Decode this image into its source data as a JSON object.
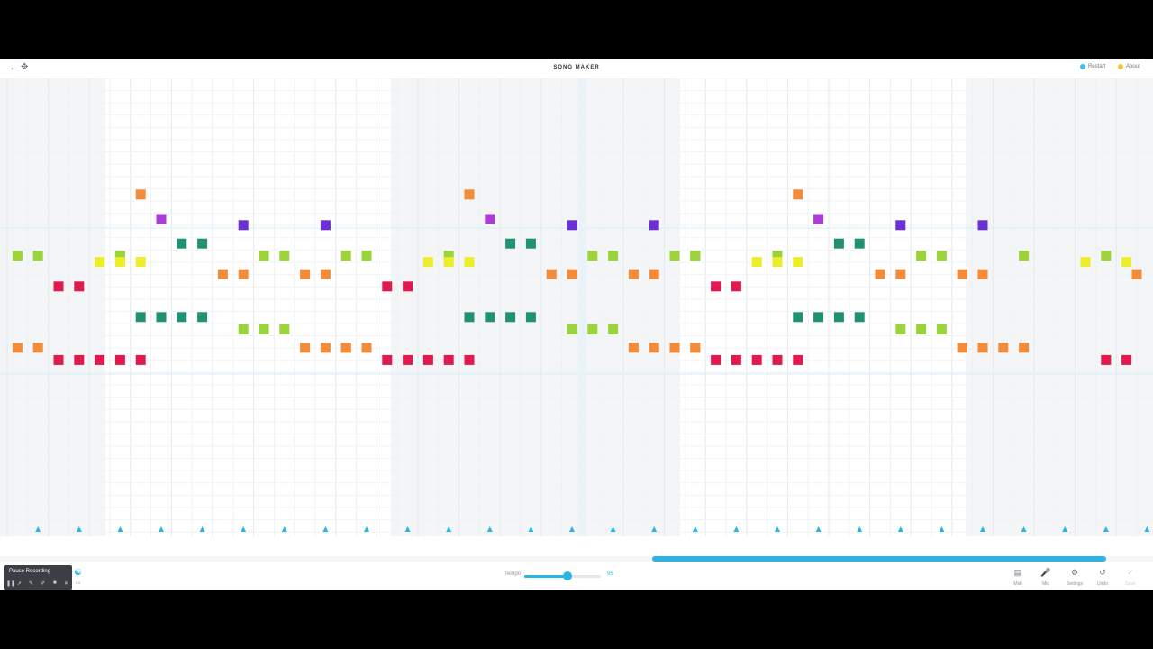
{
  "header": {
    "back_icon": "arrow-left-icon",
    "move_icon": "move-icon",
    "title": "SONG MAKER",
    "restart_label": "Restart",
    "restart_color": "#3dc2ef",
    "about_label": "About",
    "about_color": "#f4c430"
  },
  "colors": {
    "pink": "#e01a4f",
    "orange": "#f08c3b",
    "yellow": "#eded2a",
    "lime": "#9bd33b",
    "teal": "#229173",
    "purple": "#6b2fd6",
    "magenta": "#a93fd1",
    "blue": "#29b6e5"
  },
  "melody_notes": [
    {
      "row": 5,
      "cols": [
        6
      ],
      "color": "orange"
    },
    {
      "row": 7,
      "cols": [
        7
      ],
      "color": "magenta"
    },
    {
      "row": 7.5,
      "cols": [
        11,
        15
      ],
      "color": "purple"
    },
    {
      "row": 9,
      "cols": [
        8,
        9
      ],
      "color": "teal"
    },
    {
      "row": 10,
      "cols": [
        0,
        1,
        5,
        12,
        13,
        17
      ],
      "color": "lime"
    },
    {
      "row": 10.5,
      "cols": [
        4,
        5,
        6
      ],
      "color": "yellow"
    },
    {
      "row": 11.5,
      "cols": [
        10,
        11,
        14,
        15
      ],
      "color": "orange"
    },
    {
      "row": 12.5,
      "cols": [
        2,
        3
      ],
      "color": "pink"
    },
    {
      "row": 15,
      "cols": [
        6,
        7,
        8,
        9
      ],
      "color": "teal"
    },
    {
      "row": 16,
      "cols": [
        11,
        12,
        13
      ],
      "color": "lime"
    },
    {
      "row": 17.5,
      "cols": [
        0,
        1,
        14,
        15,
        16,
        17
      ],
      "color": "orange"
    },
    {
      "row": 18.5,
      "cols": [
        2,
        3,
        4,
        5,
        6
      ],
      "color": "pink"
    }
  ],
  "repeat_offsets": [
    0,
    16,
    32
  ],
  "trailing_notes": [
    {
      "row": 10,
      "col": 53,
      "color": "lime"
    },
    {
      "row": 10.5,
      "col": 52,
      "color": "yellow"
    },
    {
      "row": 10.5,
      "col": 54,
      "color": "yellow"
    },
    {
      "row": 11.5,
      "col": 54.5,
      "color": "orange"
    },
    {
      "row": 18.5,
      "col": 53,
      "color": "pink"
    },
    {
      "row": 18.5,
      "col": 54,
      "color": "pink"
    }
  ],
  "rhythm": {
    "triangle_cols_step": 2,
    "circle_cols_step": 2,
    "color": "#29b6e5"
  },
  "recording": {
    "label": "Pause Recording",
    "tool_icons": [
      "pause-icon",
      "cursor-icon",
      "pen-icon",
      "marker-icon",
      "video-icon",
      "close-icon"
    ]
  },
  "edit": {
    "label": "Ed"
  },
  "tempo": {
    "label": "Tempo",
    "value": "95",
    "level": 0.56
  },
  "toolbar": {
    "midi_label": "Midi",
    "mic_label": "Mic",
    "settings_label": "Settings",
    "undo_label": "Undo",
    "save_label": "Save"
  }
}
